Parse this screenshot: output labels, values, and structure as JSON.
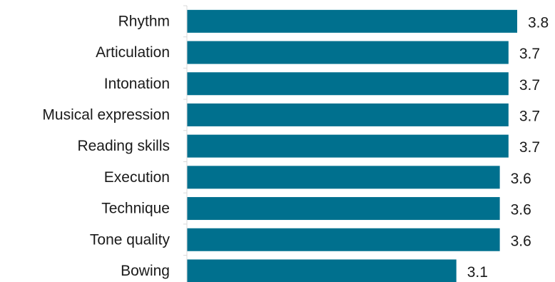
{
  "chart_data": {
    "type": "bar",
    "orientation": "horizontal",
    "categories": [
      "Rhythm",
      "Articulation",
      "Intonation",
      "Musical expression",
      "Reading skills",
      "Execution",
      "Technique",
      "Tone quality",
      "Bowing"
    ],
    "values": [
      3.8,
      3.7,
      3.7,
      3.7,
      3.7,
      3.6,
      3.6,
      3.6,
      3.1
    ],
    "value_labels": [
      "3.8",
      "3.7",
      "3.7",
      "3.7",
      "3.7",
      "3.6",
      "3.6",
      "3.6",
      "3.1"
    ],
    "xlim": [
      0,
      3.8
    ],
    "bar_color": "#00708e",
    "axis_color": "#d9d9d9",
    "grid": false,
    "legend": "none"
  }
}
